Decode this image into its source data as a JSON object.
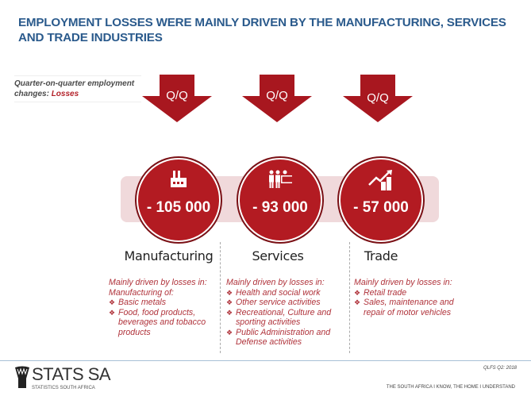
{
  "title": "EMPLOYMENT LOSSES WERE MAINLY DRIVEN BY THE MANUFACTURING, SERVICES AND TRADE INDUSTRIES",
  "qq_label": {
    "prefix": "Quarter-on-quarter employment changes: ",
    "highlight": "Losses"
  },
  "arrow_label": "Q/Q",
  "colors": {
    "title": "#2a5a8c",
    "accent_red": "#b31b22",
    "band": "#f0d9db",
    "detail_text": "#b0333b"
  },
  "sectors": [
    {
      "name": "Manufacturing",
      "value": "- 105 000",
      "icon": "factory-icon",
      "intro": "Mainly driven by losses in:",
      "subintro": "Manufacturing of:",
      "items": [
        "Basic metals",
        "Food, food products, beverages and tobacco products"
      ]
    },
    {
      "name": "Services",
      "value": "- 93 000",
      "icon": "people-desk-icon",
      "intro": "Mainly driven by losses in:",
      "subintro": "",
      "items": [
        "Health and social work",
        "Other service activities",
        "Recreational, Culture and sporting activities",
        "Public Administration and Defense activities"
      ]
    },
    {
      "name": "Trade",
      "value": "- 57 000",
      "icon": "trend-chart-icon",
      "intro": "Mainly driven by losses in:",
      "subintro": "",
      "items": [
        "Retail trade",
        "Sales, maintenance and repair of motor vehicles"
      ]
    }
  ],
  "bullet_glyph": "❖",
  "footer": {
    "brand": "STATS SA",
    "brand_sub": "STATISTICS SOUTH AFRICA",
    "report": "QLFS Q2: 2018",
    "tagline": "THE SOUTH AFRICA I KNOW, THE HOME I UNDERSTAND"
  }
}
